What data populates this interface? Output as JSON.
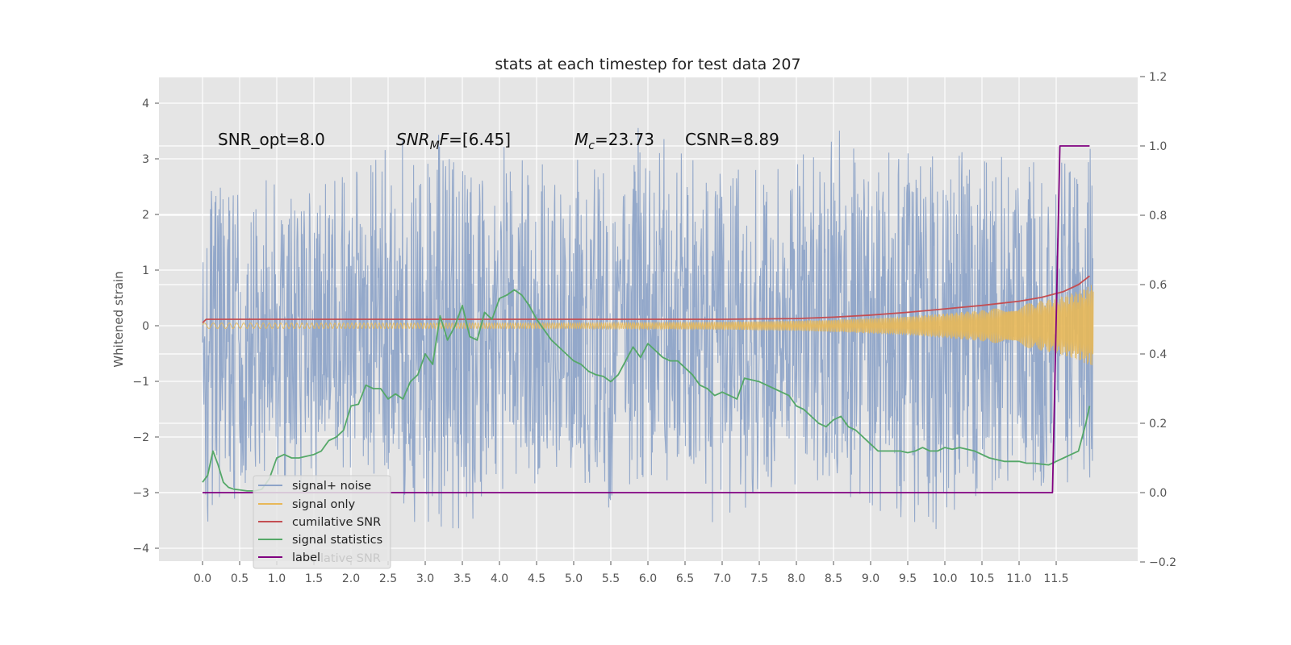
{
  "chart_data": {
    "type": "line",
    "title": "stats at each timestep for test data 207",
    "xlabel": "",
    "ylabel": "Whitened strain",
    "xlim": [
      -0.6,
      12.6
    ],
    "ylim": [
      -4.25,
      4.45
    ],
    "y2lim": [
      -0.2,
      1.2
    ],
    "xticks": [
      "0.0",
      "0.5",
      "1.0",
      "1.5",
      "2.0",
      "2.5",
      "3.0",
      "3.5",
      "4.0",
      "4.5",
      "5.0",
      "5.5",
      "6.0",
      "6.5",
      "7.0",
      "7.5",
      "8.0",
      "8.5",
      "9.0",
      "9.5",
      "10.0",
      "10.5",
      "11.0",
      "11.5"
    ],
    "yticks": [
      "−4",
      "−3",
      "−2",
      "−1",
      "0",
      "1",
      "2",
      "3",
      "4"
    ],
    "y2ticks": [
      "−0.2",
      "0.0",
      "0.2",
      "0.4",
      "0.6",
      "0.8",
      "1.0",
      "1.2"
    ],
    "grid": true,
    "legend_position": "lower-left",
    "annotations": {
      "snr_opt": "SNR_opt=8.0",
      "snr_mf_sym": "SNR",
      "snr_mf_sub": "M",
      "snr_mf_rest": "F=[6.45]",
      "mc_sym": "M",
      "mc_sub": "c",
      "mc_rest": "=23.73",
      "csnr": "CSNR=8.89"
    },
    "series": [
      {
        "name": "signal+ noise",
        "color": "#8ea4c8",
        "axis": "left",
        "envelope_x": [
          0.0,
          0.5,
          1.0,
          1.5,
          2.0,
          2.5,
          3.0,
          3.5,
          4.0,
          4.5,
          5.0,
          5.5,
          6.0,
          6.5,
          7.0,
          7.5,
          8.0,
          8.5,
          9.0,
          9.5,
          10.0,
          10.5,
          11.0,
          11.5,
          12.0
        ],
        "envelope_hi": [
          2.4,
          2.5,
          2.7,
          2.6,
          2.7,
          3.2,
          3.7,
          3.5,
          3.3,
          3.0,
          3.0,
          3.1,
          3.9,
          3.1,
          3.0,
          2.9,
          3.0,
          3.6,
          3.1,
          3.2,
          3.0,
          3.3,
          3.0,
          3.1,
          3.2
        ],
        "envelope_lo": [
          -3.8,
          -3.0,
          -2.8,
          -2.9,
          -2.7,
          -2.9,
          -3.8,
          -3.7,
          -3.1,
          -2.9,
          -2.8,
          -3.4,
          -2.9,
          -2.8,
          -3.8,
          -3.0,
          -2.9,
          -3.0,
          -3.3,
          -3.5,
          -3.8,
          -3.2,
          -3.0,
          -2.8,
          -3.0
        ]
      },
      {
        "name": "signal only",
        "color": "#e8b858",
        "axis": "left",
        "amplitude_x": [
          0.0,
          1.0,
          2.0,
          3.0,
          4.0,
          5.0,
          6.0,
          7.0,
          8.0,
          8.5,
          9.0,
          9.5,
          10.0,
          10.5,
          11.0,
          11.5,
          11.8,
          12.0
        ],
        "amplitude": [
          0.05,
          0.05,
          0.05,
          0.05,
          0.05,
          0.05,
          0.06,
          0.07,
          0.09,
          0.11,
          0.14,
          0.17,
          0.22,
          0.28,
          0.37,
          0.5,
          0.62,
          0.75
        ]
      },
      {
        "name": "cumilative SNR",
        "color": "#c44e52",
        "axis": "right",
        "x": [
          0.0,
          0.05,
          0.5,
          1.0,
          2.0,
          3.0,
          4.0,
          5.0,
          6.0,
          7.0,
          8.0,
          8.5,
          9.0,
          9.5,
          10.0,
          10.5,
          11.0,
          11.3,
          11.6,
          11.8,
          11.95
        ],
        "y": [
          0.49,
          0.5,
          0.5,
          0.5,
          0.5,
          0.5,
          0.5,
          0.5,
          0.5,
          0.5,
          0.502,
          0.506,
          0.512,
          0.52,
          0.53,
          0.54,
          0.552,
          0.563,
          0.58,
          0.6,
          0.625
        ]
      },
      {
        "name": "signal statistics",
        "color": "#55a868",
        "axis": "right",
        "x": [
          0.0,
          0.07,
          0.14,
          0.21,
          0.28,
          0.35,
          0.42,
          0.5,
          0.6,
          0.7,
          0.8,
          0.9,
          1.0,
          1.1,
          1.2,
          1.3,
          1.4,
          1.5,
          1.6,
          1.7,
          1.8,
          1.9,
          2.0,
          2.1,
          2.2,
          2.3,
          2.4,
          2.5,
          2.6,
          2.7,
          2.8,
          2.9,
          3.0,
          3.1,
          3.2,
          3.3,
          3.4,
          3.5,
          3.6,
          3.7,
          3.8,
          3.9,
          4.0,
          4.1,
          4.2,
          4.3,
          4.4,
          4.5,
          4.6,
          4.7,
          4.8,
          4.9,
          5.0,
          5.1,
          5.2,
          5.3,
          5.4,
          5.5,
          5.6,
          5.7,
          5.8,
          5.9,
          6.0,
          6.1,
          6.2,
          6.3,
          6.4,
          6.5,
          6.6,
          6.7,
          6.8,
          6.9,
          7.0,
          7.1,
          7.2,
          7.3,
          7.4,
          7.5,
          7.6,
          7.7,
          7.8,
          7.9,
          8.0,
          8.1,
          8.2,
          8.3,
          8.4,
          8.5,
          8.6,
          8.7,
          8.8,
          8.9,
          9.0,
          9.1,
          9.2,
          9.3,
          9.4,
          9.5,
          9.6,
          9.7,
          9.8,
          9.9,
          10.0,
          10.1,
          10.2,
          10.3,
          10.4,
          10.5,
          10.6,
          10.7,
          10.8,
          10.9,
          11.0,
          11.1,
          11.2,
          11.3,
          11.4,
          11.5,
          11.6,
          11.7,
          11.8,
          11.9,
          11.95
        ],
        "y": [
          0.03,
          0.05,
          0.12,
          0.08,
          0.03,
          0.015,
          0.01,
          0.008,
          0.005,
          0.005,
          0.01,
          0.04,
          0.1,
          0.11,
          0.1,
          0.1,
          0.105,
          0.11,
          0.12,
          0.15,
          0.16,
          0.18,
          0.25,
          0.255,
          0.31,
          0.3,
          0.3,
          0.27,
          0.285,
          0.27,
          0.32,
          0.34,
          0.4,
          0.37,
          0.51,
          0.44,
          0.48,
          0.54,
          0.45,
          0.44,
          0.52,
          0.5,
          0.56,
          0.57,
          0.585,
          0.57,
          0.54,
          0.5,
          0.47,
          0.44,
          0.42,
          0.4,
          0.38,
          0.37,
          0.35,
          0.34,
          0.335,
          0.32,
          0.34,
          0.38,
          0.42,
          0.39,
          0.43,
          0.41,
          0.39,
          0.38,
          0.38,
          0.36,
          0.34,
          0.31,
          0.3,
          0.28,
          0.29,
          0.28,
          0.27,
          0.33,
          0.325,
          0.32,
          0.31,
          0.3,
          0.29,
          0.28,
          0.25,
          0.24,
          0.22,
          0.2,
          0.19,
          0.21,
          0.22,
          0.19,
          0.18,
          0.16,
          0.14,
          0.12,
          0.12,
          0.12,
          0.12,
          0.115,
          0.12,
          0.13,
          0.12,
          0.12,
          0.13,
          0.125,
          0.13,
          0.125,
          0.12,
          0.11,
          0.1,
          0.095,
          0.09,
          0.09,
          0.09,
          0.085,
          0.085,
          0.082,
          0.08,
          0.09,
          0.1,
          0.11,
          0.12,
          0.2,
          0.25
        ]
      },
      {
        "name": "label",
        "color": "#800080",
        "axis": "right",
        "x": [
          0.0,
          11.45,
          11.55,
          11.95
        ],
        "y": [
          0.0,
          0.0,
          1.0,
          1.0
        ]
      }
    ]
  },
  "legend": {
    "items": [
      {
        "label": "signal+ noise",
        "color": "#8ea4c8"
      },
      {
        "label": "signal only",
        "color": "#e8b858"
      },
      {
        "label": "cumilative SNR",
        "color": "#c44e52"
      },
      {
        "label": "signal statistics",
        "color": "#55a868"
      },
      {
        "label": "label",
        "color": "#800080"
      }
    ],
    "ghost_text": "lative SNR"
  }
}
